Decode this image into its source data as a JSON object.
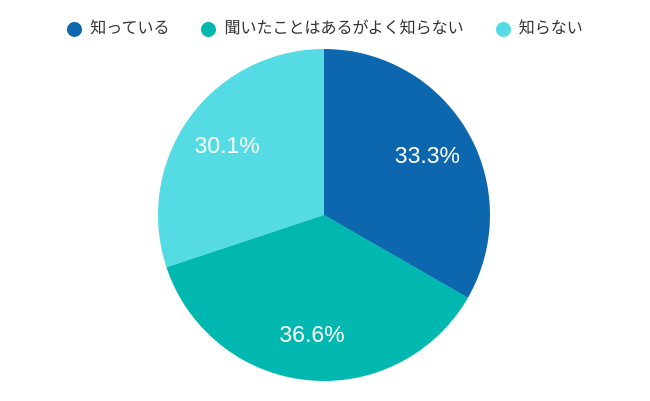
{
  "background_color": "#ffffff",
  "chart_data": {
    "type": "pie",
    "title": "",
    "legend_position": "top",
    "start_angle_deg": 0,
    "direction": "clockwise",
    "value_label_color": "#ffffff",
    "legend_text_color": "#333333",
    "slices": [
      {
        "label": "知っている",
        "value": 33.3,
        "display": "33.3%",
        "color": "#0D67AE"
      },
      {
        "label": "聞いたことはあるがよく知らない",
        "value": 36.6,
        "display": "36.6%",
        "color": "#00B8AF"
      },
      {
        "label": "知らない",
        "value": 30.1,
        "display": "30.1%",
        "color": "#54DBE3"
      }
    ]
  }
}
